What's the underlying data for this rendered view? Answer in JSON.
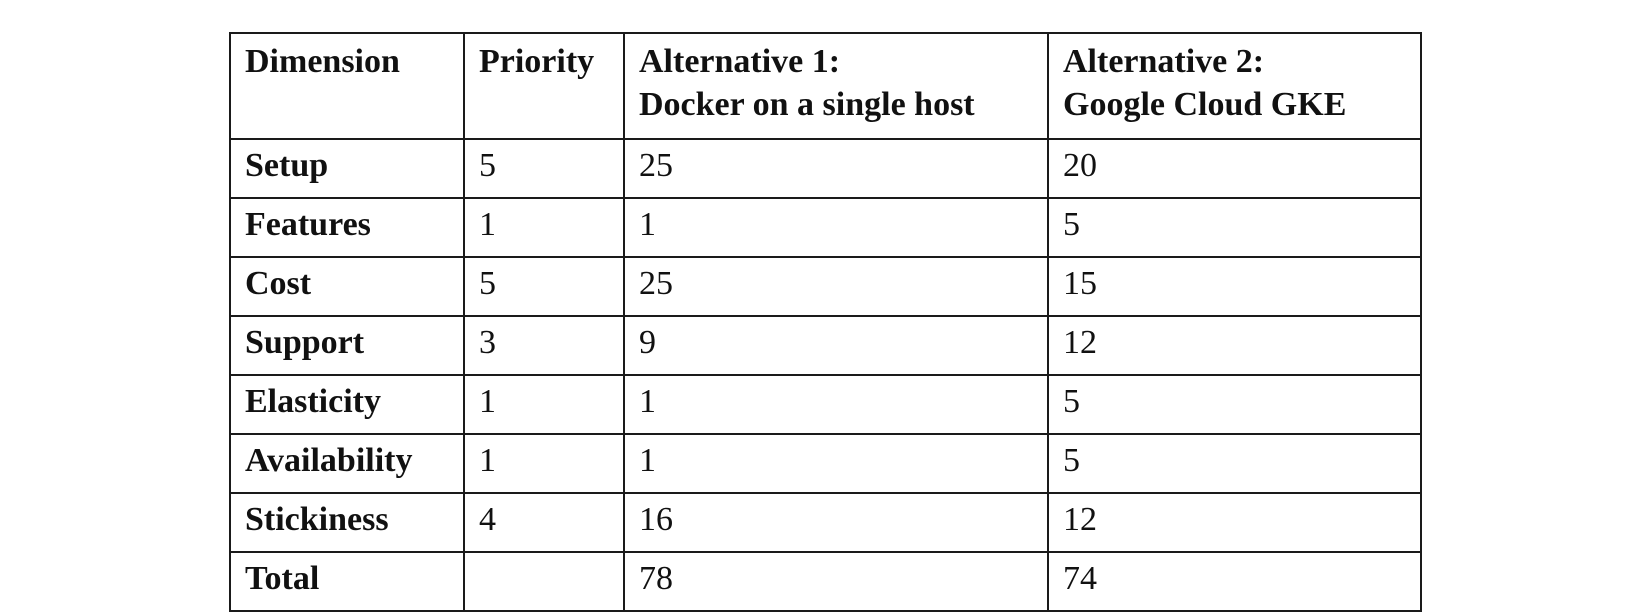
{
  "table": {
    "headers": {
      "dimension": "Dimension",
      "priority": "Priority",
      "alt1": [
        "Alternative 1:",
        "Docker on a single host"
      ],
      "alt2": [
        "Alternative 2:",
        "Google Cloud GKE"
      ]
    },
    "rows": [
      {
        "dimension": "Setup",
        "priority": "5",
        "alt1": "25",
        "alt2": "20"
      },
      {
        "dimension": "Features",
        "priority": "1",
        "alt1": "1",
        "alt2": "5"
      },
      {
        "dimension": "Cost",
        "priority": "5",
        "alt1": "25",
        "alt2": "15"
      },
      {
        "dimension": "Support",
        "priority": "3",
        "alt1": "9",
        "alt2": "12"
      },
      {
        "dimension": "Elasticity",
        "priority": "1",
        "alt1": "1",
        "alt2": "5"
      },
      {
        "dimension": "Availability",
        "priority": "1",
        "alt1": "1",
        "alt2": "5"
      },
      {
        "dimension": "Stickiness",
        "priority": "4",
        "alt1": "16",
        "alt2": "12"
      },
      {
        "dimension": "Total",
        "priority": "",
        "alt1": "78",
        "alt2": "74"
      }
    ]
  }
}
